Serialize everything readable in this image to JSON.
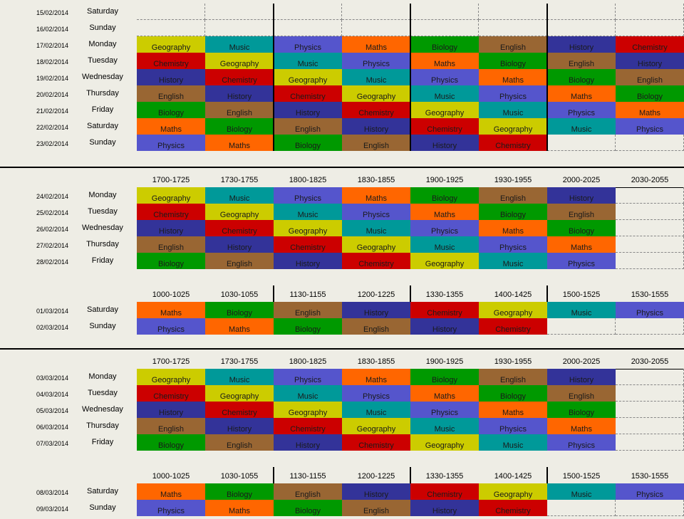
{
  "colors": {
    "Geography": "#cccc00",
    "Music": "#009999",
    "Physics": "#5555cc",
    "Maths": "#ff6600",
    "Biology": "#009900",
    "English": "#996633",
    "History": "#333399",
    "Chemistry": "#cc0000",
    "empty": "#eeede5"
  },
  "blocks": [
    {
      "headers": [],
      "rows": [
        {
          "date": "15/02/2014",
          "day": "Saturday",
          "cells": [
            "",
            "",
            "",
            "",
            "",
            "",
            "",
            ""
          ]
        },
        {
          "date": "16/02/2014",
          "day": "Sunday",
          "cells": [
            "",
            "",
            "",
            "",
            "",
            "",
            "",
            ""
          ]
        },
        {
          "date": "17/02/2014",
          "day": "Monday",
          "cells": [
            "Geography",
            "Music",
            "Physics",
            "Maths",
            "Biology",
            "English",
            "History",
            "Chemistry"
          ]
        },
        {
          "date": "18/02/2014",
          "day": "Tuesday",
          "cells": [
            "Chemistry",
            "Geography",
            "Music",
            "Physics",
            "Maths",
            "Biology",
            "English",
            "History"
          ]
        },
        {
          "date": "19/02/2014",
          "day": "Wednesday",
          "cells": [
            "History",
            "Chemistry",
            "Geography",
            "Music",
            "Physics",
            "Maths",
            "Biology",
            "English"
          ]
        },
        {
          "date": "20/02/2014",
          "day": "Thursday",
          "cells": [
            "English",
            "History",
            "Chemistry",
            "Geography",
            "Music",
            "Physics",
            "Maths",
            "Biology"
          ]
        },
        {
          "date": "21/02/2014",
          "day": "Friday",
          "cells": [
            "Biology",
            "English",
            "History",
            "Chemistry",
            "Geography",
            "Music",
            "Physics",
            "Maths"
          ]
        },
        {
          "date": "22/02/2014",
          "day": "Saturday",
          "cells": [
            "Maths",
            "Biology",
            "English",
            "History",
            "Chemistry",
            "Geography",
            "Music",
            "Physics"
          ]
        },
        {
          "date": "23/02/2014",
          "day": "Sunday",
          "cells": [
            "Physics",
            "Maths",
            "Biology",
            "English",
            "History",
            "Chemistry",
            "",
            ""
          ]
        }
      ]
    },
    {
      "headers": [
        "1700-1725",
        "1730-1755",
        "1800-1825",
        "1830-1855",
        "1900-1925",
        "1930-1955",
        "2000-2025",
        "2030-2055"
      ],
      "rows": [
        {
          "date": "24/02/2014",
          "day": "Monday",
          "cells": [
            "Geography",
            "Music",
            "Physics",
            "Maths",
            "Biology",
            "English",
            "History",
            ""
          ]
        },
        {
          "date": "25/02/2014",
          "day": "Tuesday",
          "cells": [
            "Chemistry",
            "Geography",
            "Music",
            "Physics",
            "Maths",
            "Biology",
            "English",
            ""
          ]
        },
        {
          "date": "26/02/2014",
          "day": "Wednesday",
          "cells": [
            "History",
            "Chemistry",
            "Geography",
            "Music",
            "Physics",
            "Maths",
            "Biology",
            ""
          ]
        },
        {
          "date": "27/02/2014",
          "day": "Thursday",
          "cells": [
            "English",
            "History",
            "Chemistry",
            "Geography",
            "Music",
            "Physics",
            "Maths",
            ""
          ]
        },
        {
          "date": "28/02/2014",
          "day": "Friday",
          "cells": [
            "Biology",
            "English",
            "History",
            "Chemistry",
            "Geography",
            "Music",
            "Physics",
            ""
          ]
        }
      ]
    },
    {
      "headers": [
        "1000-1025",
        "1030-1055",
        "1130-1155",
        "1200-1225",
        "1330-1355",
        "1400-1425",
        "1500-1525",
        "1530-1555"
      ],
      "rows": [
        {
          "date": "01/03/2014",
          "day": "Saturday",
          "cells": [
            "Maths",
            "Biology",
            "English",
            "History",
            "Chemistry",
            "Geography",
            "Music",
            "Physics"
          ]
        },
        {
          "date": "02/03/2014",
          "day": "Sunday",
          "cells": [
            "Physics",
            "Maths",
            "Biology",
            "English",
            "History",
            "Chemistry",
            "",
            ""
          ]
        }
      ]
    },
    {
      "headers": [
        "1700-1725",
        "1730-1755",
        "1800-1825",
        "1830-1855",
        "1900-1925",
        "1930-1955",
        "2000-2025",
        "2030-2055"
      ],
      "rows": [
        {
          "date": "03/03/2014",
          "day": "Monday",
          "cells": [
            "Geography",
            "Music",
            "Physics",
            "Maths",
            "Biology",
            "English",
            "History",
            ""
          ]
        },
        {
          "date": "04/03/2014",
          "day": "Tuesday",
          "cells": [
            "Chemistry",
            "Geography",
            "Music",
            "Physics",
            "Maths",
            "Biology",
            "English",
            ""
          ]
        },
        {
          "date": "05/03/2014",
          "day": "Wednesday",
          "cells": [
            "History",
            "Chemistry",
            "Geography",
            "Music",
            "Physics",
            "Maths",
            "Biology",
            ""
          ]
        },
        {
          "date": "06/03/2014",
          "day": "Thursday",
          "cells": [
            "English",
            "History",
            "Chemistry",
            "Geography",
            "Music",
            "Physics",
            "Maths",
            ""
          ]
        },
        {
          "date": "07/03/2014",
          "day": "Friday",
          "cells": [
            "Biology",
            "English",
            "History",
            "Chemistry",
            "Geography",
            "Music",
            "Physics",
            ""
          ]
        }
      ]
    },
    {
      "headers": [
        "1000-1025",
        "1030-1055",
        "1130-1155",
        "1200-1225",
        "1330-1355",
        "1400-1425",
        "1500-1525",
        "1530-1555"
      ],
      "rows": [
        {
          "date": "08/03/2014",
          "day": "Saturday",
          "cells": [
            "Maths",
            "Biology",
            "English",
            "History",
            "Chemistry",
            "Geography",
            "Music",
            "Physics"
          ]
        },
        {
          "date": "09/03/2014",
          "day": "Sunday",
          "cells": [
            "Physics",
            "Maths",
            "Biology",
            "English",
            "History",
            "Chemistry",
            "",
            ""
          ]
        }
      ]
    }
  ]
}
